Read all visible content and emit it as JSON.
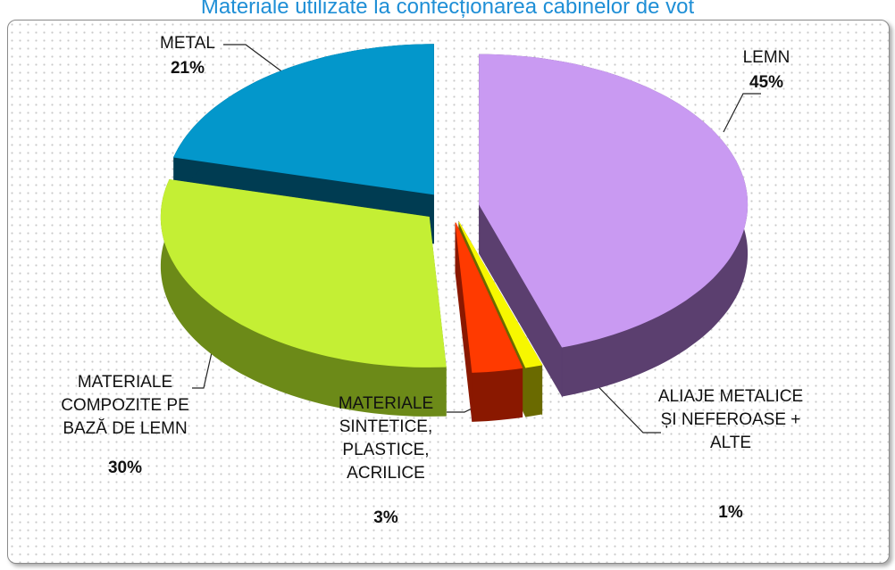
{
  "chart_data": {
    "type": "pie3d",
    "title": "Materiale utilizate la confecționarea cabinelor de vot",
    "categories": [
      "LEMN",
      "ALIAJE METALICE ȘI NEFEROASE + ALTE",
      "MATERIALE SINTETICE, PLASTICE, ACRILICE",
      "MATERIALE COMPOZITE PE BAZĂ DE LEMN",
      "METAL"
    ],
    "values": [
      45,
      1,
      3,
      30,
      21
    ],
    "value_labels": [
      "45%",
      "1%",
      "3%",
      "30%",
      "21%"
    ],
    "colors": [
      "#c99af2",
      "#f7f700",
      "#ff3a00",
      "#c4ef34",
      "#0397cb"
    ],
    "side_colors": [
      "#5b3f6f",
      "#6a6a00",
      "#8a1800",
      "#6c8a18",
      "#003c52"
    ]
  }
}
